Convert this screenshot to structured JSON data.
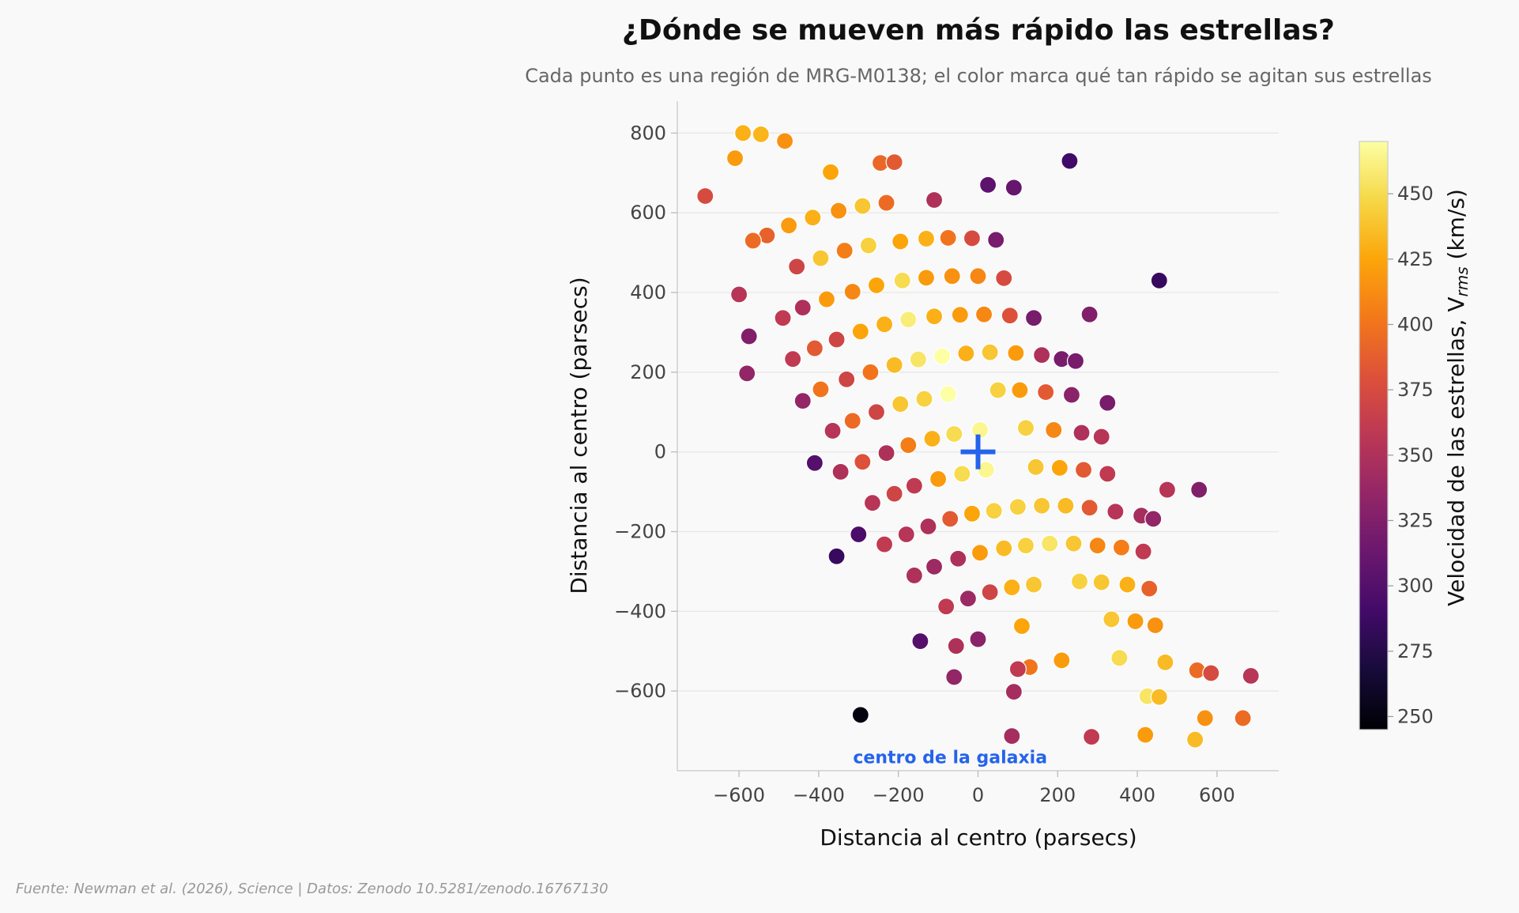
{
  "chart_data": {
    "type": "scatter",
    "title": "¿Dónde se mueven más rápido las estrellas?",
    "subtitle": "Cada punto es una región de MRG-M0138; el color marca qué tan rápido se agitan sus estrellas",
    "xlabel": "Distancia al centro (parsecs)",
    "ylabel": "Distancia al centro (parsecs)",
    "xlim": [
      -755,
      755
    ],
    "ylim": [
      -800,
      880
    ],
    "xticks": [
      -600,
      -400,
      -200,
      0,
      200,
      400,
      600
    ],
    "yticks": [
      -600,
      -400,
      -200,
      0,
      200,
      400,
      600,
      800
    ],
    "xtick_labels": [
      "−600",
      "−400",
      "−200",
      "0",
      "200",
      "400",
      "600"
    ],
    "ytick_labels": [
      "−600",
      "−400",
      "−200",
      "0",
      "200",
      "400",
      "600",
      "800"
    ],
    "grid": "horizontal",
    "colormap": "inferno",
    "colorbar": {
      "label_main": "Velocidad de las estrellas, V",
      "label_sub": "rms",
      "label_unit": " (km/s)",
      "range": [
        245,
        470
      ],
      "ticks": [
        250,
        275,
        300,
        325,
        350,
        375,
        400,
        425,
        450
      ]
    },
    "center_marker": {
      "x": 0,
      "y": 0,
      "color": "#2563eb"
    },
    "annotation": {
      "text": "centro de la galaxia",
      "x": -70,
      "y": -720,
      "color": "#2563eb"
    },
    "source": "Fuente: Newman et al. (2026), Science | Datos: Zenodo 10.5281/zenodo.16767130",
    "points": [
      {
        "x": -590,
        "y": 800,
        "v": 430
      },
      {
        "x": -545,
        "y": 797,
        "v": 432
      },
      {
        "x": -485,
        "y": 780,
        "v": 415
      },
      {
        "x": -610,
        "y": 737,
        "v": 420
      },
      {
        "x": -370,
        "y": 702,
        "v": 425
      },
      {
        "x": -245,
        "y": 725,
        "v": 393
      },
      {
        "x": -210,
        "y": 727,
        "v": 385
      },
      {
        "x": 230,
        "y": 730,
        "v": 290
      },
      {
        "x": 25,
        "y": 670,
        "v": 305
      },
      {
        "x": 90,
        "y": 663,
        "v": 310
      },
      {
        "x": -685,
        "y": 642,
        "v": 375
      },
      {
        "x": -110,
        "y": 632,
        "v": 350
      },
      {
        "x": -230,
        "y": 625,
        "v": 395
      },
      {
        "x": -290,
        "y": 617,
        "v": 440
      },
      {
        "x": -350,
        "y": 605,
        "v": 415
      },
      {
        "x": -415,
        "y": 588,
        "v": 430
      },
      {
        "x": -475,
        "y": 568,
        "v": 420
      },
      {
        "x": -530,
        "y": 543,
        "v": 390
      },
      {
        "x": -565,
        "y": 530,
        "v": 395
      },
      {
        "x": -195,
        "y": 528,
        "v": 425
      },
      {
        "x": -130,
        "y": 535,
        "v": 430
      },
      {
        "x": -75,
        "y": 537,
        "v": 400
      },
      {
        "x": -15,
        "y": 536,
        "v": 375
      },
      {
        "x": 45,
        "y": 532,
        "v": 320
      },
      {
        "x": -275,
        "y": 518,
        "v": 445
      },
      {
        "x": -335,
        "y": 505,
        "v": 405
      },
      {
        "x": -395,
        "y": 486,
        "v": 440
      },
      {
        "x": -455,
        "y": 465,
        "v": 370
      },
      {
        "x": 455,
        "y": 430,
        "v": 285
      },
      {
        "x": -190,
        "y": 430,
        "v": 450
      },
      {
        "x": -130,
        "y": 437,
        "v": 420
      },
      {
        "x": -65,
        "y": 441,
        "v": 415
      },
      {
        "x": 0,
        "y": 441,
        "v": 410
      },
      {
        "x": 65,
        "y": 436,
        "v": 375
      },
      {
        "x": -255,
        "y": 418,
        "v": 425
      },
      {
        "x": -315,
        "y": 402,
        "v": 410
      },
      {
        "x": -380,
        "y": 383,
        "v": 420
      },
      {
        "x": -440,
        "y": 362,
        "v": 350
      },
      {
        "x": -600,
        "y": 395,
        "v": 355
      },
      {
        "x": -490,
        "y": 336,
        "v": 360
      },
      {
        "x": 140,
        "y": 336,
        "v": 320
      },
      {
        "x": 280,
        "y": 345,
        "v": 325
      },
      {
        "x": -175,
        "y": 332,
        "v": 460
      },
      {
        "x": -110,
        "y": 340,
        "v": 430
      },
      {
        "x": -45,
        "y": 344,
        "v": 420
      },
      {
        "x": 15,
        "y": 345,
        "v": 410
      },
      {
        "x": 80,
        "y": 342,
        "v": 380
      },
      {
        "x": -235,
        "y": 320,
        "v": 430
      },
      {
        "x": -295,
        "y": 302,
        "v": 425
      },
      {
        "x": -575,
        "y": 290,
        "v": 325
      },
      {
        "x": -355,
        "y": 282,
        "v": 370
      },
      {
        "x": -410,
        "y": 260,
        "v": 385
      },
      {
        "x": 210,
        "y": 233,
        "v": 320
      },
      {
        "x": 245,
        "y": 228,
        "v": 320
      },
      {
        "x": -90,
        "y": 240,
        "v": 470
      },
      {
        "x": -30,
        "y": 247,
        "v": 430
      },
      {
        "x": 30,
        "y": 250,
        "v": 440
      },
      {
        "x": 95,
        "y": 248,
        "v": 420
      },
      {
        "x": 160,
        "y": 243,
        "v": 350
      },
      {
        "x": -150,
        "y": 232,
        "v": 455
      },
      {
        "x": -465,
        "y": 233,
        "v": 360
      },
      {
        "x": -210,
        "y": 218,
        "v": 435
      },
      {
        "x": -270,
        "y": 200,
        "v": 400
      },
      {
        "x": -580,
        "y": 197,
        "v": 335
      },
      {
        "x": -330,
        "y": 182,
        "v": 370
      },
      {
        "x": -395,
        "y": 157,
        "v": 400
      },
      {
        "x": -75,
        "y": 145,
        "v": 470
      },
      {
        "x": 50,
        "y": 155,
        "v": 445
      },
      {
        "x": 105,
        "y": 155,
        "v": 420
      },
      {
        "x": 170,
        "y": 150,
        "v": 385
      },
      {
        "x": 235,
        "y": 143,
        "v": 330
      },
      {
        "x": 325,
        "y": 123,
        "v": 320
      },
      {
        "x": -135,
        "y": 133,
        "v": 445
      },
      {
        "x": -440,
        "y": 128,
        "v": 335
      },
      {
        "x": -195,
        "y": 120,
        "v": 440
      },
      {
        "x": -255,
        "y": 100,
        "v": 370
      },
      {
        "x": -315,
        "y": 78,
        "v": 395
      },
      {
        "x": -365,
        "y": 53,
        "v": 355
      },
      {
        "x": 120,
        "y": 60,
        "v": 445
      },
      {
        "x": 190,
        "y": 55,
        "v": 410
      },
      {
        "x": 260,
        "y": 48,
        "v": 350
      },
      {
        "x": 310,
        "y": 38,
        "v": 355
      },
      {
        "x": 5,
        "y": 55,
        "v": 465
      },
      {
        "x": -60,
        "y": 45,
        "v": 450
      },
      {
        "x": -115,
        "y": 33,
        "v": 430
      },
      {
        "x": -175,
        "y": 17,
        "v": 405
      },
      {
        "x": -230,
        "y": -3,
        "v": 350
      },
      {
        "x": -410,
        "y": -28,
        "v": 300
      },
      {
        "x": -290,
        "y": -25,
        "v": 380
      },
      {
        "x": -345,
        "y": -50,
        "v": 350
      },
      {
        "x": 20,
        "y": -45,
        "v": 465
      },
      {
        "x": -40,
        "y": -55,
        "v": 450
      },
      {
        "x": 145,
        "y": -38,
        "v": 440
      },
      {
        "x": 205,
        "y": -40,
        "v": 425
      },
      {
        "x": 265,
        "y": -45,
        "v": 385
      },
      {
        "x": 325,
        "y": -55,
        "v": 360
      },
      {
        "x": -100,
        "y": -68,
        "v": 420
      },
      {
        "x": -160,
        "y": -85,
        "v": 360
      },
      {
        "x": 475,
        "y": -95,
        "v": 355
      },
      {
        "x": 555,
        "y": -95,
        "v": 325
      },
      {
        "x": -210,
        "y": -105,
        "v": 370
      },
      {
        "x": -265,
        "y": -128,
        "v": 355
      },
      {
        "x": 160,
        "y": -135,
        "v": 440
      },
      {
        "x": 100,
        "y": -138,
        "v": 445
      },
      {
        "x": 40,
        "y": -148,
        "v": 445
      },
      {
        "x": 220,
        "y": -135,
        "v": 435
      },
      {
        "x": -15,
        "y": -155,
        "v": 425
      },
      {
        "x": 280,
        "y": -140,
        "v": 385
      },
      {
        "x": 345,
        "y": -150,
        "v": 355
      },
      {
        "x": 410,
        "y": -160,
        "v": 345
      },
      {
        "x": 440,
        "y": -168,
        "v": 335
      },
      {
        "x": -70,
        "y": -168,
        "v": 385
      },
      {
        "x": -125,
        "y": -187,
        "v": 350
      },
      {
        "x": -300,
        "y": -207,
        "v": 295
      },
      {
        "x": -180,
        "y": -207,
        "v": 355
      },
      {
        "x": -235,
        "y": -232,
        "v": 360
      },
      {
        "x": 180,
        "y": -230,
        "v": 455
      },
      {
        "x": 240,
        "y": -230,
        "v": 440
      },
      {
        "x": 120,
        "y": -235,
        "v": 445
      },
      {
        "x": 300,
        "y": -235,
        "v": 410
      },
      {
        "x": 65,
        "y": -242,
        "v": 435
      },
      {
        "x": 360,
        "y": -240,
        "v": 405
      },
      {
        "x": 415,
        "y": -250,
        "v": 360
      },
      {
        "x": 5,
        "y": -253,
        "v": 420
      },
      {
        "x": -355,
        "y": -262,
        "v": 285
      },
      {
        "x": -50,
        "y": -268,
        "v": 350
      },
      {
        "x": -110,
        "y": -288,
        "v": 340
      },
      {
        "x": -160,
        "y": -310,
        "v": 350
      },
      {
        "x": 255,
        "y": -325,
        "v": 445
      },
      {
        "x": 310,
        "y": -327,
        "v": 440
      },
      {
        "x": 140,
        "y": -333,
        "v": 440
      },
      {
        "x": 375,
        "y": -333,
        "v": 430
      },
      {
        "x": 85,
        "y": -340,
        "v": 430
      },
      {
        "x": 430,
        "y": -343,
        "v": 390
      },
      {
        "x": 30,
        "y": -352,
        "v": 370
      },
      {
        "x": -25,
        "y": -368,
        "v": 340
      },
      {
        "x": -80,
        "y": -388,
        "v": 360
      },
      {
        "x": 335,
        "y": -420,
        "v": 440
      },
      {
        "x": 395,
        "y": -425,
        "v": 420
      },
      {
        "x": 445,
        "y": -435,
        "v": 415
      },
      {
        "x": 110,
        "y": -437,
        "v": 425
      },
      {
        "x": -145,
        "y": -475,
        "v": 300
      },
      {
        "x": 0,
        "y": -470,
        "v": 330
      },
      {
        "x": -55,
        "y": -487,
        "v": 350
      },
      {
        "x": 355,
        "y": -517,
        "v": 450
      },
      {
        "x": 210,
        "y": -523,
        "v": 420
      },
      {
        "x": 470,
        "y": -528,
        "v": 435
      },
      {
        "x": 130,
        "y": -540,
        "v": 400
      },
      {
        "x": 100,
        "y": -545,
        "v": 360
      },
      {
        "x": 550,
        "y": -548,
        "v": 395
      },
      {
        "x": 585,
        "y": -555,
        "v": 375
      },
      {
        "x": 685,
        "y": -562,
        "v": 355
      },
      {
        "x": -60,
        "y": -565,
        "v": 335
      },
      {
        "x": 90,
        "y": -602,
        "v": 345
      },
      {
        "x": 425,
        "y": -613,
        "v": 455
      },
      {
        "x": 455,
        "y": -615,
        "v": 435
      },
      {
        "x": -295,
        "y": -660,
        "v": 250
      },
      {
        "x": 570,
        "y": -668,
        "v": 415
      },
      {
        "x": 665,
        "y": -668,
        "v": 395
      },
      {
        "x": 85,
        "y": -713,
        "v": 345
      },
      {
        "x": 285,
        "y": -715,
        "v": 360
      },
      {
        "x": 420,
        "y": -710,
        "v": 420
      },
      {
        "x": 545,
        "y": -722,
        "v": 435
      }
    ]
  }
}
